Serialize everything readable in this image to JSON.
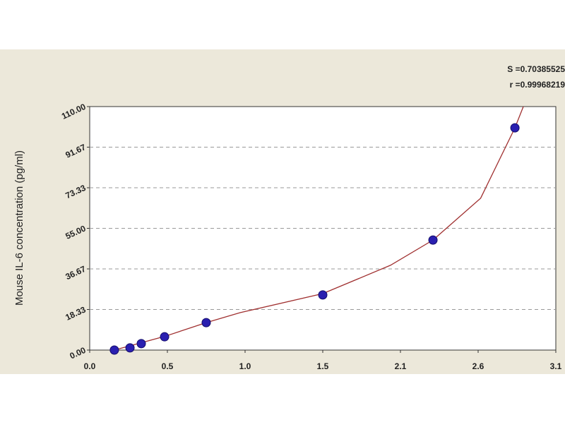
{
  "chart_data": {
    "type": "scatter",
    "ylabel": "Mouse IL-6 concentration (pg/ml)",
    "annotations": [
      "S =0.70385525",
      "r =0.99968219"
    ],
    "x": [
      0.164,
      0.268,
      0.343,
      0.498,
      0.775,
      1.55,
      2.283,
      2.828
    ],
    "values": [
      0,
      1,
      2.9,
      6,
      12.4,
      24.9,
      49.7,
      100.4
    ],
    "color": "#2a1fb0",
    "fit": {
      "color": "#a03030",
      "x": [
        0.1,
        0.164,
        0.5,
        0.775,
        1.0,
        1.55,
        2.0,
        2.283,
        2.6,
        2.828,
        2.884
      ],
      "values": [
        -1.5,
        0,
        6.2,
        12.4,
        16.9,
        25.5,
        38.3,
        49.7,
        68.6,
        100.4,
        110
      ]
    },
    "xlim": [
      0,
      3.1
    ],
    "xticks": [
      {
        "value": 0,
        "label": "0.0"
      },
      {
        "value": 0.5167,
        "label": "0.5"
      },
      {
        "value": 1.0333,
        "label": "1.0"
      },
      {
        "value": 1.55,
        "label": "1.5"
      },
      {
        "value": 2.0667,
        "label": "2.1"
      },
      {
        "value": 2.5833,
        "label": "2.6"
      },
      {
        "value": 3.1,
        "label": "3.1"
      }
    ],
    "ylim": [
      0,
      110
    ],
    "yticks": [
      {
        "value": 0,
        "label": "0.00"
      },
      18.33,
      36.67,
      {
        "value": 55,
        "label": "55.00"
      },
      73.33,
      91.67,
      {
        "value": 110,
        "label": "110.00"
      }
    ],
    "grid": true
  }
}
